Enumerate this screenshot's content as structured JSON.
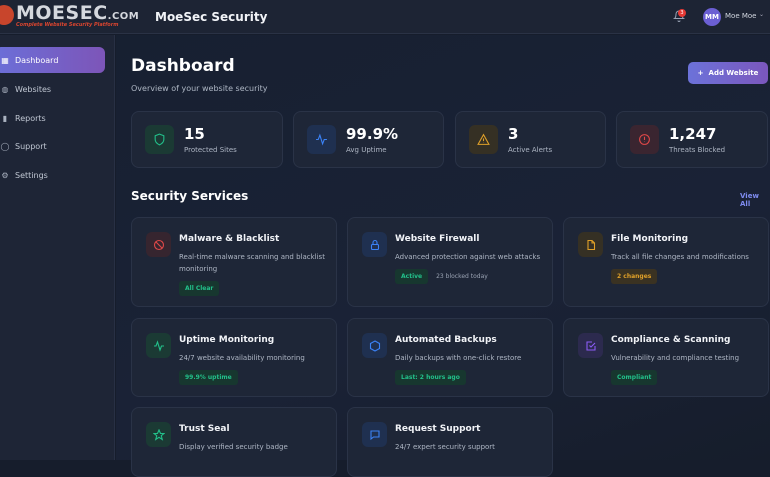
{
  "header": {
    "logo_text": "MOESEC",
    "logo_suffix": ".COM",
    "logo_tagline": "Complete Website Security Platform",
    "title": "MoeSec Security",
    "notification_count": "3",
    "user_initials": "MM",
    "user_name": "Moe Moe"
  },
  "sidebar": {
    "items": [
      {
        "label": "Dashboard",
        "icon": "grid-icon",
        "active": true
      },
      {
        "label": "Websites",
        "icon": "globe-icon"
      },
      {
        "label": "Reports",
        "icon": "chart-icon"
      },
      {
        "label": "Support",
        "icon": "help-icon"
      },
      {
        "label": "Settings",
        "icon": "gear-icon"
      }
    ]
  },
  "page": {
    "title": "Dashboard",
    "subtitle": "Overview of your website security",
    "add_button": "Add Website"
  },
  "stats": [
    {
      "value": "15",
      "label": "Protected Sites",
      "icon": "shield-icon",
      "color": "#22c08a"
    },
    {
      "value": "99.9%",
      "label": "Avg Uptime",
      "icon": "activity-icon",
      "color": "#3b82f6"
    },
    {
      "value": "3",
      "label": "Active Alerts",
      "icon": "warning-icon",
      "color": "#e0a028"
    },
    {
      "value": "1,247",
      "label": "Threats Blocked",
      "icon": "alert-circle-icon",
      "color": "#e04848"
    }
  ],
  "services": {
    "title": "Security Services",
    "view_all": "View All",
    "items": [
      {
        "title": "Malware & Blacklist",
        "desc": "Real-time malware scanning and blacklist monitoring",
        "badge": "All Clear",
        "icon": "ban-icon",
        "color": "#e04848"
      },
      {
        "title": "Website Firewall",
        "desc": "Advanced protection against web attacks",
        "badge": "Active",
        "extra": "23 blocked today",
        "icon": "lock-icon",
        "color": "#3b82f6"
      },
      {
        "title": "File Monitoring",
        "desc": "Track all file changes and modifications",
        "badge": "2 changes",
        "icon": "file-icon",
        "color": "#e0a028"
      },
      {
        "title": "Uptime Monitoring",
        "desc": "24/7 website availability monitoring",
        "badge": "99.9% uptime",
        "icon": "activity-icon",
        "color": "#22c08a"
      },
      {
        "title": "Automated Backups",
        "desc": "Daily backups with one-click restore",
        "badge": "Last: 2 hours ago",
        "icon": "hexagon-icon",
        "color": "#3b82f6"
      },
      {
        "title": "Compliance & Scanning",
        "desc": "Vulnerability and compliance testing",
        "badge": "Compliant",
        "icon": "check-square-icon",
        "color": "#8b5cf6"
      },
      {
        "title": "Trust Seal",
        "desc": "Display verified security badge",
        "icon": "star-icon",
        "color": "#22c08a"
      },
      {
        "title": "Request Support",
        "desc": "24/7 expert security support",
        "icon": "message-icon",
        "color": "#3b82f6"
      }
    ]
  }
}
